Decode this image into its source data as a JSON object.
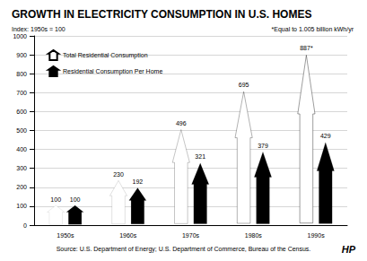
{
  "chart_data": {
    "type": "bar",
    "title": "GROWTH IN ELECTRICITY CONSUMPTION IN U.S. HOMES",
    "subtitle": "Index: 1950s = 100",
    "annotations": [
      "*Equal to 1.005 billion kWh/yr",
      "Source: U.S. Department of Energy; U.S. Department of Commerce, Bureau of the Census.",
      "HP"
    ],
    "categories": [
      "1950s",
      "1960s",
      "1970s",
      "1980s",
      "1990s"
    ],
    "series": [
      {
        "name": "Total Residential Consumption",
        "color": "#ffffff",
        "values": [
          100,
          230,
          496,
          695,
          887
        ],
        "value_labels": [
          "100",
          "230",
          "496",
          "695",
          "887*"
        ]
      },
      {
        "name": "Residential Consumption Per Home",
        "color": "#000000",
        "values": [
          100,
          192,
          321,
          379,
          429
        ]
      }
    ],
    "ylim": [
      0,
      1000
    ],
    "yticks": [
      0,
      100,
      200,
      300,
      400,
      500,
      600,
      700,
      800,
      900,
      1000
    ],
    "grid": true,
    "legend": "upper left",
    "data_labels": true
  }
}
